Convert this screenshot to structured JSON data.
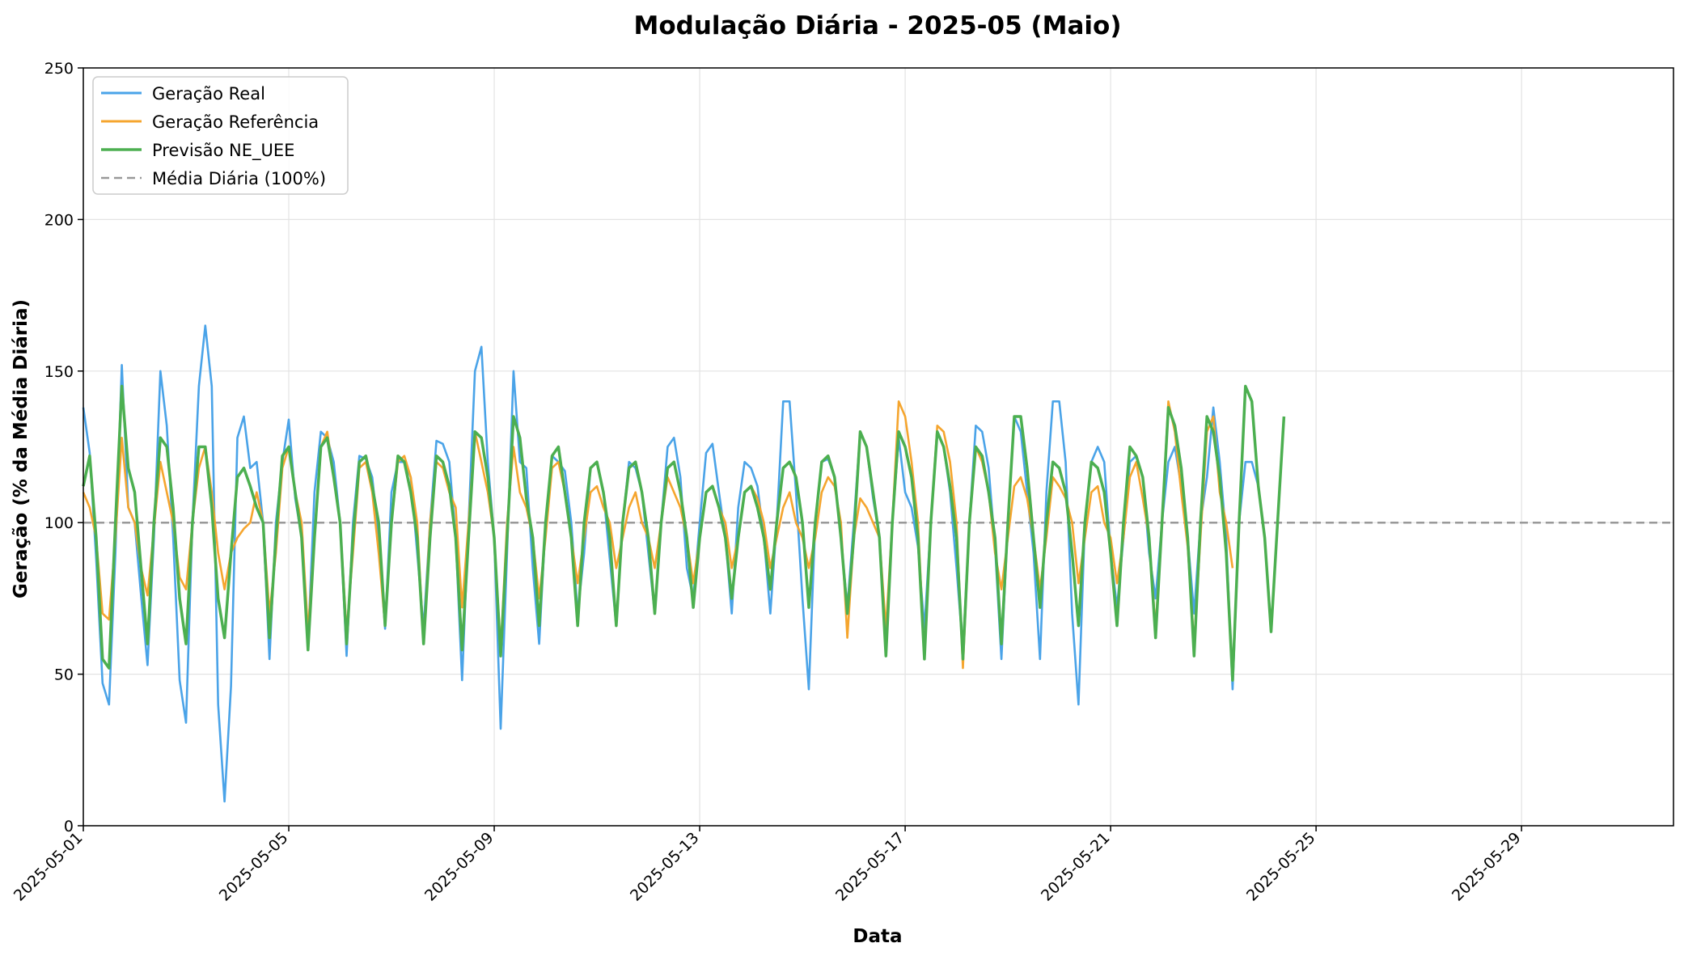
{
  "chart_data": {
    "type": "line",
    "title": "Modulação Diária - 2025-05 (Maio)",
    "xlabel": "Data",
    "ylabel": "Geração (% da Média Diária)",
    "xlim": [
      "2025-05-01",
      "2025-05-31T23:00"
    ],
    "ylim": [
      0,
      250
    ],
    "yticks": [
      0,
      50,
      100,
      150,
      200,
      250
    ],
    "xticks": [
      "2025-05-01",
      "2025-05-05",
      "2025-05-09",
      "2025-05-13",
      "2025-05-17",
      "2025-05-21",
      "2025-05-25",
      "2025-05-29"
    ],
    "grid": true,
    "legend_position": "top-left",
    "x_step": "3 hours",
    "x_start": "2025-05-01T00:00",
    "series": [
      {
        "name": "Geração Real",
        "color": "#4aa3e8",
        "style": "solid",
        "values": [
          138,
          123,
          88,
          47,
          40,
          90,
          152,
          105,
          100,
          76,
          53,
          95,
          150,
          132,
          95,
          48,
          34,
          100,
          145,
          165,
          145,
          40,
          8,
          46,
          128,
          135,
          118,
          120,
          100,
          55,
          100,
          120,
          134,
          108,
          95,
          60,
          110,
          130,
          128,
          120,
          100,
          56,
          100,
          122,
          121,
          115,
          95,
          65,
          110,
          120,
          120,
          115,
          90,
          65,
          100,
          127,
          126,
          120,
          95,
          48,
          100,
          150,
          158,
          120,
          95,
          32,
          90,
          150,
          120,
          118,
          85,
          60,
          100,
          122,
          120,
          117,
          100,
          70,
          90,
          118,
          120,
          110,
          88,
          66,
          100,
          120,
          118,
          110,
          90,
          70,
          100,
          125,
          128,
          115,
          85,
          75,
          100,
          123,
          126,
          110,
          95,
          70,
          105,
          120,
          118,
          112,
          95,
          70,
          100,
          140,
          140,
          110,
          75,
          45,
          100,
          120,
          121,
          115,
          95,
          72,
          100,
          130,
          125,
          108,
          95,
          60,
          100,
          128,
          110,
          105,
          92,
          65,
          100,
          130,
          125,
          110,
          85,
          58,
          100,
          132,
          130,
          118,
          92,
          55,
          100,
          135,
          130,
          110,
          90,
          55,
          110,
          140,
          140,
          120,
          70,
          40,
          100,
          120,
          125,
          120,
          90,
          72,
          95,
          120,
          122,
          115,
          90,
          75,
          100,
          120,
          125,
          112,
          95,
          70,
          100,
          115,
          138,
          120,
          95,
          45,
          100,
          120,
          120,
          112,
          95,
          65
        ]
      },
      {
        "name": "Geração Referência",
        "color": "#f5a52e",
        "style": "solid",
        "values": [
          110,
          105,
          95,
          70,
          68,
          95,
          128,
          105,
          100,
          85,
          76,
          98,
          120,
          110,
          100,
          82,
          78,
          100,
          118,
          125,
          110,
          90,
          78,
          90,
          95,
          98,
          100,
          110,
          100,
          70,
          90,
          118,
          125,
          110,
          100,
          64,
          95,
          125,
          130,
          115,
          100,
          64,
          90,
          118,
          120,
          110,
          90,
          66,
          100,
          120,
          122,
          115,
          100,
          60,
          100,
          120,
          118,
          110,
          105,
          72,
          100,
          130,
          120,
          110,
          95,
          58,
          100,
          125,
          110,
          105,
          95,
          75,
          95,
          118,
          120,
          110,
          95,
          80,
          95,
          110,
          112,
          105,
          100,
          85,
          95,
          105,
          110,
          100,
          95,
          85,
          100,
          115,
          110,
          105,
          95,
          80,
          95,
          110,
          112,
          105,
          100,
          85,
          95,
          110,
          112,
          108,
          100,
          85,
          95,
          105,
          110,
          100,
          95,
          85,
          95,
          110,
          115,
          112,
          100,
          62,
          95,
          108,
          105,
          100,
          95,
          65,
          100,
          140,
          135,
          120,
          100,
          55,
          100,
          132,
          130,
          120,
          100,
          52,
          100,
          125,
          120,
          110,
          90,
          78,
          95,
          112,
          115,
          108,
          95,
          78,
          95,
          115,
          112,
          108,
          100,
          80,
          95,
          110,
          112,
          100,
          95,
          80,
          95,
          115,
          120,
          108,
          95,
          65,
          100,
          140,
          130,
          110,
          92,
          60,
          95,
          130,
          135,
          110,
          100,
          85
        ]
      },
      {
        "name": "Previsão NE_UEE",
        "color": "#4caf50",
        "style": "solid",
        "values": [
          112,
          122,
          95,
          55,
          52,
          100,
          145,
          118,
          110,
          85,
          60,
          100,
          128,
          125,
          105,
          75,
          60,
          100,
          125,
          125,
          105,
          75,
          62,
          90,
          115,
          118,
          112,
          105,
          100,
          62,
          95,
          122,
          125,
          110,
          95,
          58,
          95,
          125,
          128,
          115,
          100,
          60,
          95,
          120,
          122,
          112,
          100,
          66,
          100,
          122,
          120,
          110,
          95,
          60,
          95,
          122,
          120,
          112,
          95,
          58,
          95,
          130,
          128,
          115,
          95,
          56,
          95,
          135,
          128,
          108,
          95,
          66,
          100,
          122,
          125,
          110,
          95,
          66,
          100,
          118,
          120,
          110,
          95,
          66,
          100,
          118,
          120,
          110,
          95,
          70,
          100,
          118,
          120,
          110,
          95,
          72,
          95,
          110,
          112,
          105,
          95,
          75,
          95,
          110,
          112,
          105,
          95,
          78,
          100,
          118,
          120,
          115,
          100,
          72,
          100,
          120,
          122,
          115,
          95,
          70,
          95,
          130,
          125,
          110,
          95,
          56,
          100,
          130,
          125,
          115,
          95,
          55,
          100,
          130,
          125,
          112,
          95,
          55,
          100,
          125,
          122,
          110,
          95,
          60,
          100,
          135,
          135,
          118,
          95,
          72,
          100,
          120,
          118,
          110,
          90,
          66,
          100,
          120,
          118,
          110,
          90,
          66,
          100,
          125,
          122,
          115,
          95,
          62,
          100,
          138,
          132,
          118,
          95,
          56,
          100,
          135,
          130,
          115,
          90,
          48,
          100,
          145,
          140,
          112,
          95,
          64,
          100,
          135
        ]
      },
      {
        "name": "Média Diária (100%)",
        "color": "#999999",
        "style": "dashed",
        "constant": 100
      }
    ]
  }
}
